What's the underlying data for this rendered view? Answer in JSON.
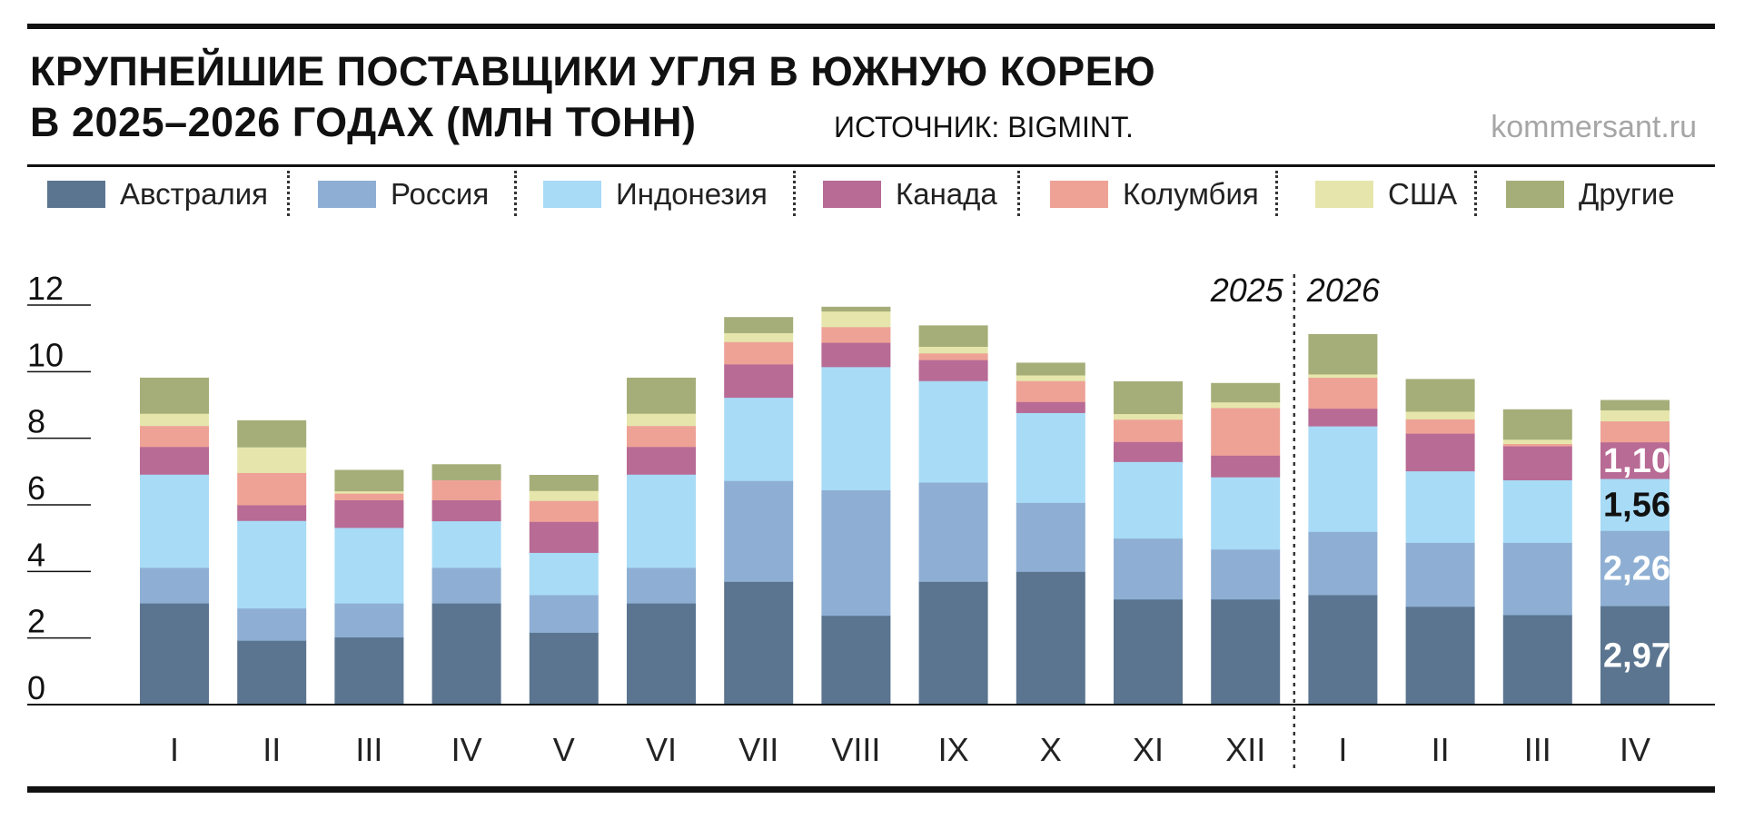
{
  "title": {
    "line1": "КРУПНЕЙШИЕ ПОСТАВЩИКИ УГЛЯ В ЮЖНУЮ КОРЕЮ",
    "line2": "В 2025–2026 ГОДАХ (МЛН ТОНН)"
  },
  "source": "ИСТОЧНИК: BIGMINT.",
  "site": "kommersant.ru",
  "chart_data": {
    "type": "bar",
    "stacked": true,
    "ylim": [
      0,
      12
    ],
    "yticks": [
      "12",
      "10",
      "8",
      "6",
      "4",
      "2",
      "0"
    ],
    "grid": false,
    "legend_position": "top",
    "year_labels": [
      "2025",
      "2026"
    ],
    "categories": [
      "I",
      "II",
      "III",
      "IV",
      "V",
      "VI",
      "VII",
      "VIII",
      "IX",
      "X",
      "XI",
      "XII",
      "I",
      "II",
      "III",
      "IV"
    ],
    "series": [
      {
        "name": "Австралия",
        "color": "#5b7590",
        "values": [
          3.05,
          1.93,
          2.03,
          3.05,
          2.17,
          3.05,
          3.7,
          2.68,
          3.7,
          4.0,
          3.17,
          3.17,
          3.3,
          2.95,
          2.7,
          2.97
        ]
      },
      {
        "name": "Россия",
        "color": "#8eafd3",
        "values": [
          1.07,
          0.97,
          1.02,
          1.07,
          1.13,
          1.07,
          3.03,
          3.77,
          2.98,
          2.07,
          1.83,
          1.5,
          1.9,
          1.92,
          2.17,
          2.26
        ]
      },
      {
        "name": "Индонезия",
        "color": "#a8dbf6",
        "values": [
          2.8,
          2.63,
          2.27,
          1.4,
          1.27,
          2.8,
          2.5,
          3.7,
          3.05,
          2.7,
          2.3,
          2.17,
          3.17,
          2.15,
          1.88,
          1.56
        ]
      },
      {
        "name": "Канада",
        "color": "#b86b95",
        "values": [
          0.83,
          0.47,
          0.83,
          0.63,
          0.93,
          0.83,
          1.0,
          0.73,
          0.63,
          0.33,
          0.6,
          0.65,
          0.53,
          1.13,
          1.02,
          1.1
        ]
      },
      {
        "name": "Колумбия",
        "color": "#eea296",
        "values": [
          0.63,
          0.97,
          0.2,
          0.6,
          0.63,
          0.63,
          0.67,
          0.47,
          0.2,
          0.63,
          0.67,
          1.43,
          0.93,
          0.43,
          0.07,
          0.63
        ]
      },
      {
        "name": "США",
        "color": "#e6e6ac",
        "values": [
          0.37,
          0.77,
          0.07,
          0.0,
          0.3,
          0.37,
          0.27,
          0.47,
          0.2,
          0.17,
          0.17,
          0.17,
          0.1,
          0.23,
          0.13,
          0.33
        ]
      },
      {
        "name": "Другие",
        "color": "#a5ae79",
        "values": [
          1.07,
          0.8,
          0.63,
          0.47,
          0.47,
          1.07,
          0.47,
          0.13,
          0.63,
          0.37,
          0.97,
          0.57,
          1.2,
          0.97,
          0.9,
          0.3
        ]
      }
    ],
    "data_labels": [
      {
        "category_index": 15,
        "series": "Австралия",
        "text": "2,97",
        "color": "#ffffff"
      },
      {
        "category_index": 15,
        "series": "Россия",
        "text": "2,26",
        "color": "#ffffff"
      },
      {
        "category_index": 15,
        "series": "Индонезия",
        "text": "1,56",
        "color": "#111111"
      },
      {
        "category_index": 15,
        "series": "Канада",
        "text": "1,10",
        "color": "#ffffff"
      }
    ]
  }
}
